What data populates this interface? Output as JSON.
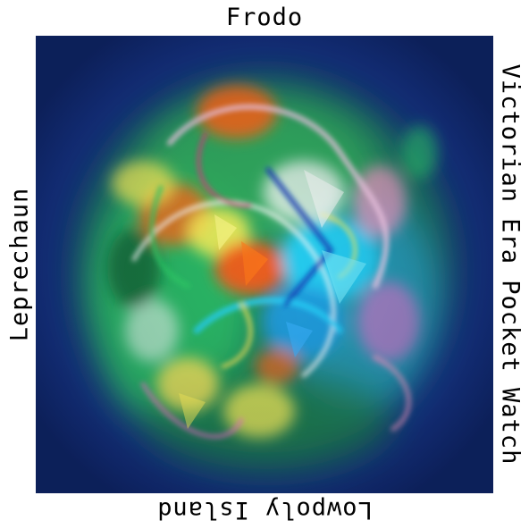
{
  "labels": {
    "top": "Frodo",
    "bottom": "Lowpoly Island",
    "left": "Leprechaun",
    "right": "Victorian Era Pocket Watch"
  },
  "colors": {
    "background": "#ffffff",
    "frame_blue": "#14307c",
    "green": "#2fd36a",
    "cyan": "#27d7ff",
    "orange": "#ff6a1a",
    "yellow": "#fff35a",
    "magenta": "#ff6fd1"
  }
}
